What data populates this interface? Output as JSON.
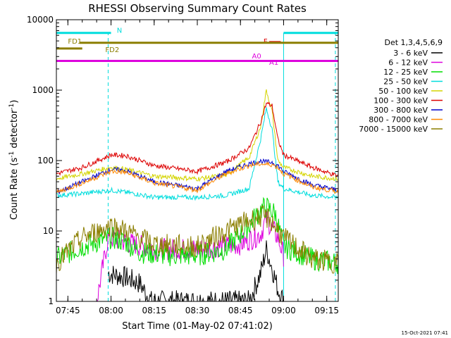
{
  "chart_data": {
    "type": "line",
    "title": "RHESSI Observing Summary Count Rates",
    "xlabel": "Start Time (01-May-02 07:41:02)",
    "ylabel_main": "Count Rate (s",
    "ylabel_sup1": "-1",
    "ylabel_mid": " detector",
    "ylabel_sup2": "-1",
    "ylabel_end": ")",
    "y_scale": "log",
    "ylim": [
      1,
      10000
    ],
    "xlim": [
      "07:41",
      "09:19"
    ],
    "x_ticks": [
      "07:45",
      "08:00",
      "08:15",
      "08:30",
      "08:45",
      "09:00",
      "09:15"
    ],
    "y_ticks": [
      "1",
      "10",
      "100",
      "1000",
      "10000"
    ],
    "legend_title": "Det 1,3,4,5,6,9",
    "legend_position": "right",
    "timestamp": "15-Oct-2021 07:41",
    "series": [
      {
        "name": "3 - 6 keV",
        "color": "#000000",
        "points": [
          [
            "07:59",
            2.5
          ],
          [
            "08:05",
            2.2
          ],
          [
            "08:10",
            1.8
          ],
          [
            "08:14",
            1.0
          ],
          [
            "08:48",
            1.0
          ],
          [
            "08:52",
            2.5
          ],
          [
            "08:54",
            5.5
          ],
          [
            "08:56",
            3.0
          ],
          [
            "08:58",
            1.5
          ],
          [
            "09:00",
            1.0
          ]
        ]
      },
      {
        "name": "6 - 12 keV",
        "color": "#dd00dd",
        "points": [
          [
            "07:55",
            1.0
          ],
          [
            "07:59",
            8.0
          ],
          [
            "08:05",
            7.0
          ],
          [
            "08:15",
            5.5
          ],
          [
            "08:30",
            5.5
          ],
          [
            "08:45",
            6.5
          ],
          [
            "08:52",
            9.0
          ],
          [
            "08:54",
            15.0
          ],
          [
            "08:56",
            11.0
          ],
          [
            "08:58",
            8.0
          ],
          [
            "09:00",
            4.5
          ]
        ]
      },
      {
        "name": "12 - 25 keV",
        "color": "#00dd00",
        "points": [
          [
            "07:41",
            4.0
          ],
          [
            "07:50",
            6.0
          ],
          [
            "08:00",
            8.0
          ],
          [
            "08:05",
            7.0
          ],
          [
            "08:10",
            5.0
          ],
          [
            "08:20",
            4.5
          ],
          [
            "08:30",
            4.5
          ],
          [
            "08:40",
            5.5
          ],
          [
            "08:48",
            12.0
          ],
          [
            "08:52",
            20.0
          ],
          [
            "08:54",
            22.0
          ],
          [
            "08:57",
            18.0
          ],
          [
            "09:00",
            6.0
          ],
          [
            "09:10",
            4.0
          ],
          [
            "09:19",
            3.5
          ]
        ]
      },
      {
        "name": "25 - 50 keV",
        "color": "#00dddd",
        "points": [
          [
            "07:41",
            32
          ],
          [
            "07:50",
            34
          ],
          [
            "08:00",
            38
          ],
          [
            "08:08",
            34
          ],
          [
            "08:15",
            30
          ],
          [
            "08:30",
            30
          ],
          [
            "08:40",
            32
          ],
          [
            "08:48",
            40
          ],
          [
            "08:52",
            200
          ],
          [
            "08:54",
            550
          ],
          [
            "08:56",
            280
          ],
          [
            "08:58",
            50
          ],
          [
            "09:00",
            40
          ],
          [
            "09:10",
            32
          ],
          [
            "09:19",
            30
          ]
        ]
      },
      {
        "name": "50 - 100 keV",
        "color": "#d4d400",
        "points": [
          [
            "07:41",
            55
          ],
          [
            "07:50",
            65
          ],
          [
            "08:00",
            80
          ],
          [
            "08:05",
            75
          ],
          [
            "08:15",
            60
          ],
          [
            "08:30",
            55
          ],
          [
            "08:40",
            62
          ],
          [
            "08:48",
            110
          ],
          [
            "08:52",
            300
          ],
          [
            "08:54",
            1000
          ],
          [
            "08:56",
            500
          ],
          [
            "08:58",
            100
          ],
          [
            "09:00",
            80
          ],
          [
            "09:10",
            60
          ],
          [
            "09:19",
            55
          ]
        ]
      },
      {
        "name": "100 - 300 keV",
        "color": "#dd0000",
        "points": [
          [
            "07:41",
            65
          ],
          [
            "07:50",
            80
          ],
          [
            "08:00",
            120
          ],
          [
            "08:05",
            118
          ],
          [
            "08:15",
            85
          ],
          [
            "08:30",
            70
          ],
          [
            "08:40",
            95
          ],
          [
            "08:48",
            150
          ],
          [
            "08:52",
            350
          ],
          [
            "08:54",
            650
          ],
          [
            "08:56",
            600
          ],
          [
            "08:58",
            200
          ],
          [
            "09:00",
            120
          ],
          [
            "09:10",
            80
          ],
          [
            "09:19",
            60
          ]
        ]
      },
      {
        "name": "300 - 800 keV",
        "color": "#0000cc",
        "points": [
          [
            "07:41",
            35
          ],
          [
            "07:50",
            50
          ],
          [
            "08:00",
            75
          ],
          [
            "08:05",
            72
          ],
          [
            "08:15",
            50
          ],
          [
            "08:30",
            40
          ],
          [
            "08:40",
            70
          ],
          [
            "08:48",
            90
          ],
          [
            "08:52",
            98
          ],
          [
            "08:54",
            95
          ],
          [
            "08:56",
            95
          ],
          [
            "08:58",
            85
          ],
          [
            "09:00",
            70
          ],
          [
            "09:10",
            45
          ],
          [
            "09:19",
            38
          ]
        ]
      },
      {
        "name": "800 - 7000 keV",
        "color": "#ff8800",
        "points": [
          [
            "07:41",
            35
          ],
          [
            "07:50",
            48
          ],
          [
            "08:00",
            70
          ],
          [
            "08:05",
            68
          ],
          [
            "08:15",
            48
          ],
          [
            "08:30",
            38
          ],
          [
            "08:40",
            65
          ],
          [
            "08:48",
            85
          ],
          [
            "08:52",
            90
          ],
          [
            "08:54",
            88
          ],
          [
            "08:56",
            88
          ],
          [
            "08:58",
            80
          ],
          [
            "09:00",
            65
          ],
          [
            "09:10",
            42
          ],
          [
            "09:19",
            36
          ]
        ]
      },
      {
        "name": "7000 - 15000 keV",
        "color": "#8b7e00",
        "points": [
          [
            "07:41",
            3.5
          ],
          [
            "07:50",
            8.0
          ],
          [
            "08:00",
            12.0
          ],
          [
            "08:05",
            10.0
          ],
          [
            "08:15",
            6.5
          ],
          [
            "08:30",
            6.0
          ],
          [
            "08:40",
            10.0
          ],
          [
            "08:48",
            14.0
          ],
          [
            "08:52",
            16.0
          ],
          [
            "08:55",
            15.0
          ],
          [
            "09:00",
            8.0
          ],
          [
            "09:10",
            4.0
          ],
          [
            "09:19",
            3.5
          ]
        ]
      }
    ],
    "flags": [
      {
        "label": "N",
        "color": "#00dddd",
        "level": 6500,
        "segments": [
          [
            "07:41",
            "08:00"
          ],
          [
            "09:00",
            "09:19"
          ]
        ],
        "label_at": "08:02",
        "label_level": 7200
      },
      {
        "label": "F",
        "color": "#dd0000",
        "level": 4800,
        "segments": [
          [
            "08:55",
            "08:59"
          ]
        ],
        "label_at": "08:53",
        "label_level": 5000
      },
      {
        "label": "FD1",
        "color": "#8b7e00",
        "level": 4700,
        "segments": [
          [
            "07:49",
            "09:19"
          ]
        ],
        "label_at": "07:45",
        "label_level": 5000
      },
      {
        "label": "FD2",
        "color": "#8b7e00",
        "level": 3900,
        "segments": [
          [
            "07:41",
            "07:50"
          ]
        ],
        "label_at": "07:58",
        "label_level": 3800
      },
      {
        "label": "A0",
        "color": "#dd00dd",
        "level": 2600,
        "segments": [
          [
            "07:41",
            "09:19"
          ]
        ],
        "label_at": "08:49",
        "label_level": 3100
      },
      {
        "label": "A1",
        "color": "#dd00dd",
        "level": 2600,
        "segments": [],
        "label_at": "08:55",
        "label_level": 2500
      }
    ],
    "vlines": [
      {
        "time": "07:41",
        "color": "#00dddd",
        "style": "solid",
        "from": 1,
        "to": 6500
      },
      {
        "time": "07:59",
        "color": "#00dddd",
        "style": "dashed",
        "from": 1,
        "to": 6500
      },
      {
        "time": "09:00",
        "color": "#00dddd",
        "style": "solid",
        "from": 1,
        "to": 6500
      },
      {
        "time": "09:18",
        "color": "#00dddd",
        "style": "dashed",
        "from": 1,
        "to": 6500
      }
    ]
  }
}
